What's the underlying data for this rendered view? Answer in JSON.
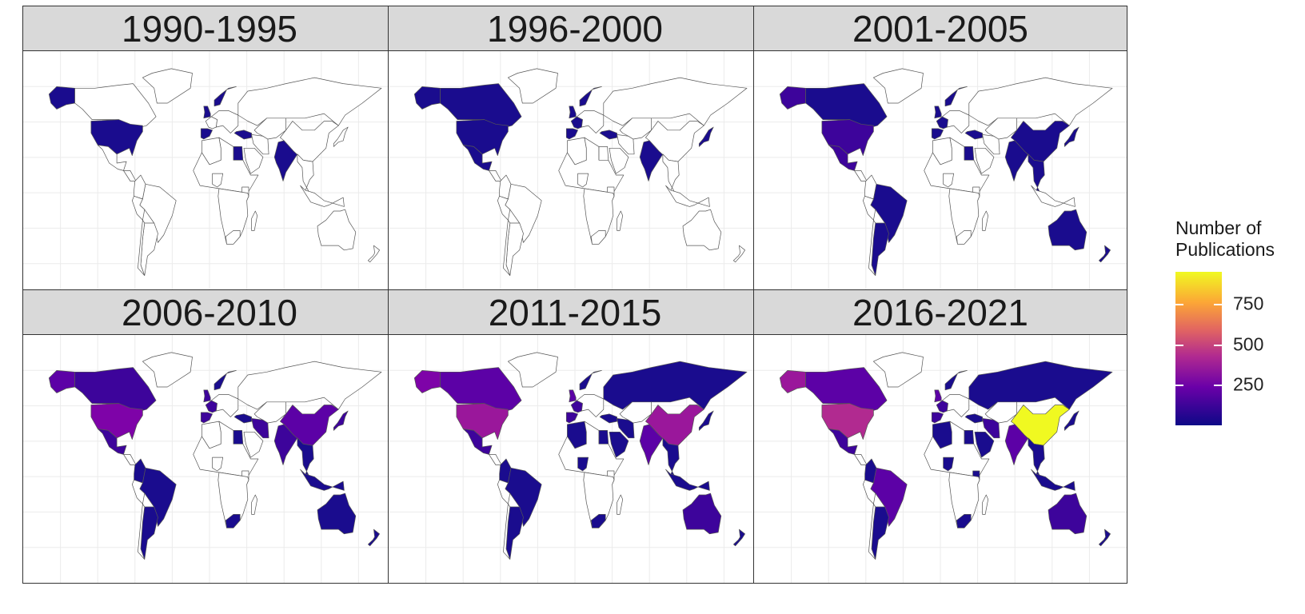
{
  "panels": [
    {
      "title": "1990-1995",
      "fills": {
        "usa": 1,
        "alaska": 1,
        "india": 1,
        "uk": 1,
        "iberia": 1,
        "norway": 1,
        "turkey": 1,
        "egypt": 1
      }
    },
    {
      "title": "1996-2000",
      "fills": {
        "usa": 1,
        "canada": 1,
        "alaska": 1,
        "mexico": 1,
        "india": 1,
        "uk": 1,
        "iberia": 1,
        "france": 1,
        "norway": 1,
        "turkey": 1,
        "japan": 1
      }
    },
    {
      "title": "2001-2005",
      "fills": {
        "usa": 2,
        "canada": 1,
        "alaska": 2,
        "mexico": 2,
        "brazil": 1,
        "argentina": 1,
        "india": 1,
        "china": 1,
        "japan": 1,
        "australia": 1,
        "nz": 1,
        "uk": 1,
        "france": 1,
        "iberia": 1,
        "norway": 1,
        "turkey": 1,
        "egypt": 1,
        "seasia": 1
      }
    },
    {
      "title": "2006-2010",
      "fills": {
        "usa": 4,
        "canada": 2,
        "alaska": 3,
        "mexico": 2,
        "brazil": 1,
        "argentina": 1,
        "colombia": 1,
        "india": 2,
        "china": 3,
        "japan": 2,
        "australia": 1,
        "nz": 1,
        "uk": 2,
        "france": 2,
        "iberia": 2,
        "norway": 1,
        "turkey": 1,
        "egypt": 1,
        "southafrica": 1,
        "seasia": 1,
        "indonesia": 1,
        "iran": 2
      }
    },
    {
      "title": "2011-2015",
      "fills": {
        "usa": 5,
        "canada": 3,
        "alaska": 4,
        "mexico": 2,
        "brazil": 1,
        "argentina": 1,
        "colombia": 1,
        "india": 3,
        "china": 5,
        "russia": 1,
        "japan": 1,
        "australia": 2,
        "nz": 1,
        "uk": 3,
        "france": 2,
        "iberia": 2,
        "norway": 1,
        "turkey": 1,
        "egypt": 1,
        "southafrica": 1,
        "nigeria": 1,
        "seasia": 1,
        "indonesia": 1,
        "iran": 1,
        "saudi": 1,
        "algeria": 1
      }
    },
    {
      "title": "2016-2021",
      "fills": {
        "usa": 6,
        "canada": 3,
        "alaska": 5,
        "mexico": 2,
        "brazil": 3,
        "argentina": 1,
        "colombia": 1,
        "india": 3,
        "china": 9,
        "russia": 1,
        "japan": 1,
        "australia": 2,
        "nz": 1,
        "uk": 3,
        "france": 2,
        "iberia": 2,
        "norway": 1,
        "turkey": 1,
        "egypt": 1,
        "southafrica": 1,
        "nigeria": 1,
        "seasia": 1,
        "indonesia": 1,
        "iran": 2,
        "saudi": 1,
        "algeria": 1,
        "kenya": 1
      }
    }
  ],
  "legend": {
    "title_line1": "Number of",
    "title_line2": "Publications",
    "ticks": [
      {
        "label": "250",
        "value": 250
      },
      {
        "label": "500",
        "value": 500
      },
      {
        "label": "750",
        "value": 750
      }
    ],
    "min": 0,
    "max": 950,
    "colors": {
      "low": "#0d0887",
      "mid": "#b12a90",
      "high": "#f0f921"
    }
  }
}
